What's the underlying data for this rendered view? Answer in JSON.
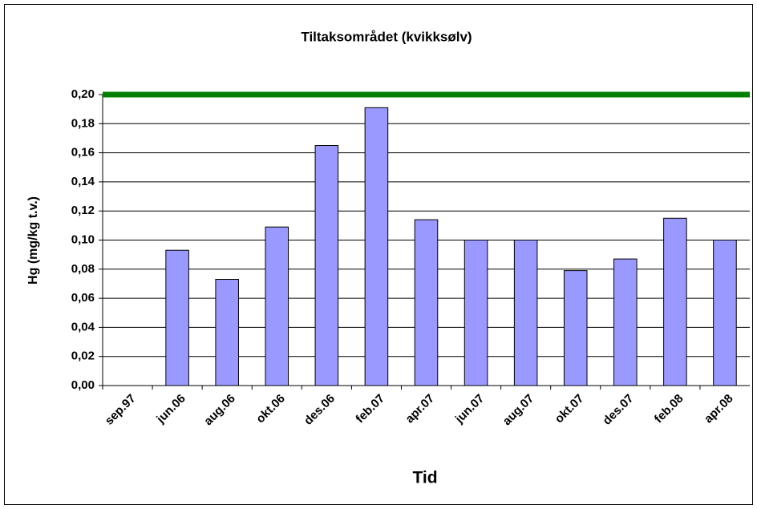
{
  "chart_data": {
    "type": "bar",
    "title": "Tiltaksområdet (kvikksølv)",
    "x_label": "Tid",
    "y_label": "Hg (mg/kg t.v.)",
    "categories": [
      "sep.97",
      "jun.06",
      "aug.06",
      "okt.06",
      "des.06",
      "feb.07",
      "apr.07",
      "jun.07",
      "aug.07",
      "okt.07",
      "des.07",
      "feb.08",
      "apr.08"
    ],
    "values": [
      null,
      0.093,
      0.073,
      0.109,
      0.165,
      0.191,
      0.114,
      0.1,
      0.1,
      0.079,
      0.087,
      0.115,
      0.1
    ],
    "color": "#9999ff",
    "reference_line": {
      "value": 0.2,
      "color": "#008000"
    },
    "ylim": [
      0,
      0.2
    ],
    "yticks": [
      {
        "value": 0,
        "label": "0,00"
      },
      {
        "value": 0.02,
        "label": "0,02"
      },
      {
        "value": 0.04,
        "label": "0,04"
      },
      {
        "value": 0.06,
        "label": "0,06"
      },
      {
        "value": 0.08,
        "label": "0,08"
      },
      {
        "value": 0.1,
        "label": "0,10"
      },
      {
        "value": 0.12,
        "label": "0,12"
      },
      {
        "value": 0.14,
        "label": "0,14"
      },
      {
        "value": 0.16,
        "label": "0,16"
      },
      {
        "value": 0.18,
        "label": "0,18"
      },
      {
        "value": 0.2,
        "label": "0,20"
      }
    ],
    "grid": true
  }
}
